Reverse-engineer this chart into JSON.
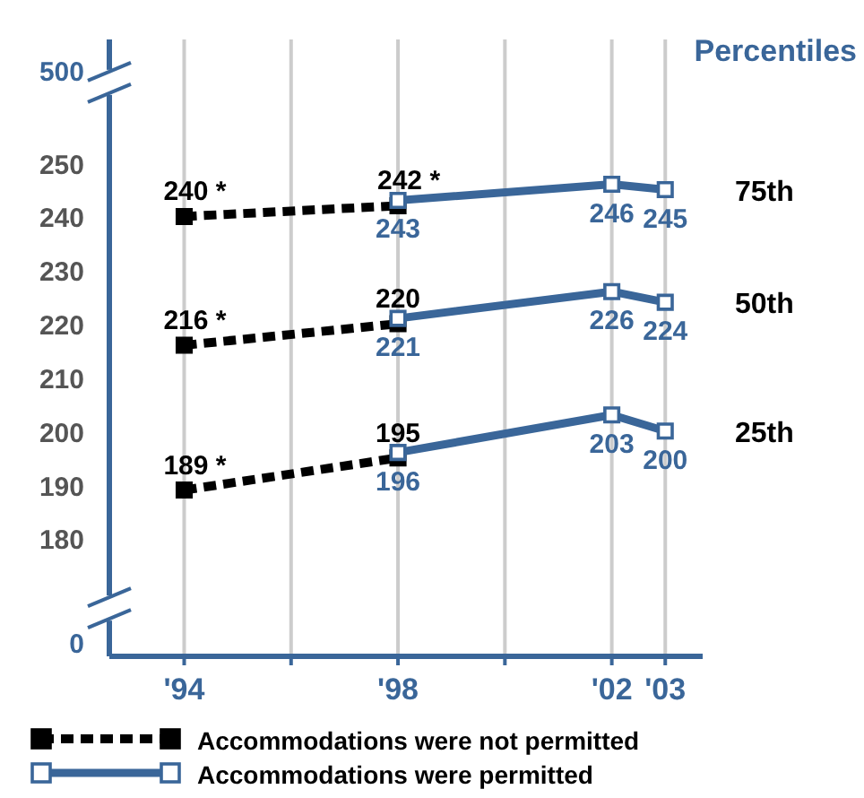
{
  "chart_data": {
    "type": "line",
    "xlim": [
      1992.6,
      2003.7
    ],
    "xticks": [
      {
        "value": 1994,
        "label": "'94"
      },
      {
        "value": 1996,
        "label": null
      },
      {
        "value": 1998,
        "label": "'98"
      },
      {
        "value": 2000,
        "label": null
      },
      {
        "value": 2002,
        "label": "'02"
      },
      {
        "value": 2003,
        "label": "'03"
      }
    ],
    "ylim": [
      158,
      273
    ],
    "yticks": [
      180,
      190,
      200,
      210,
      220,
      230,
      240,
      250
    ],
    "grid": "x",
    "legend": "bottom",
    "marker": "square",
    "series": [
      {
        "name": "Accommodations were not permitted",
        "color": "#000000",
        "line_style": "dashed",
        "x": [
          1994,
          1998
        ],
        "values": [
          240,
          242
        ],
        "value_labels": [
          "240 *",
          "242 *"
        ]
      },
      {
        "color": "#000000",
        "line_style": "dashed",
        "x": [
          1994,
          1998
        ],
        "values": [
          216,
          220
        ],
        "value_labels": [
          "216 *",
          "220"
        ]
      },
      {
        "color": "#000000",
        "line_style": "dashed",
        "x": [
          1994,
          1998
        ],
        "values": [
          189,
          195
        ],
        "value_labels": [
          "189 *",
          "195"
        ]
      },
      {
        "name": "Accommodations were permitted",
        "color": "#3a6699",
        "line_style": "solid",
        "x": [
          1998,
          2002,
          2003
        ],
        "values": [
          243,
          246,
          245
        ],
        "value_labels": [
          "243",
          "246",
          "245"
        ]
      },
      {
        "color": "#3a6699",
        "line_style": "solid",
        "x": [
          1998,
          2002,
          2003
        ],
        "values": [
          221,
          226,
          224
        ],
        "value_labels": [
          "221",
          "226",
          "224"
        ]
      },
      {
        "color": "#3a6699",
        "line_style": "solid",
        "x": [
          1998,
          2002,
          2003
        ],
        "values": [
          196,
          203,
          200
        ],
        "value_labels": [
          "196",
          "203",
          "200"
        ]
      }
    ],
    "annotations": [
      "Percentiles",
      "500",
      "0",
      "75th",
      "50th",
      "25th"
    ]
  }
}
